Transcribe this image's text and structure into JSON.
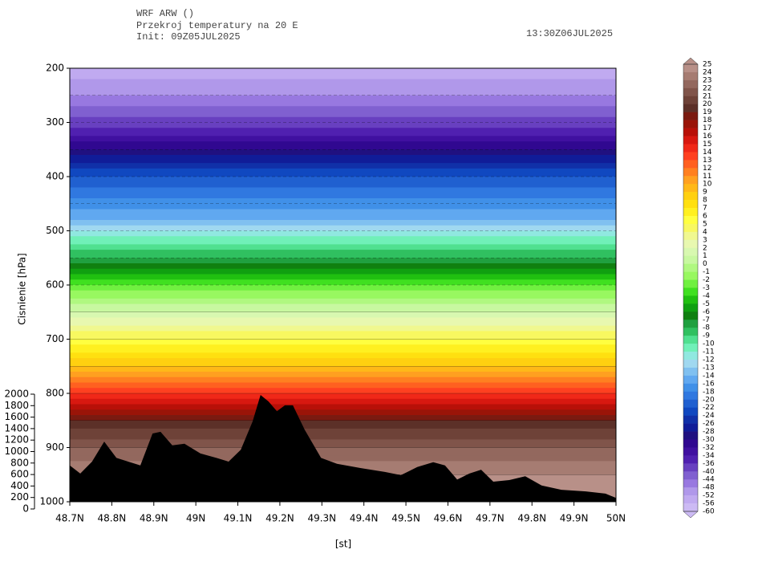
{
  "header": {
    "model": "WRF ARW ()",
    "title": "Przekroj temperatury na 20 E",
    "init": "Init: 09Z05JUL2025",
    "valid": "13:30Z06JUL2025"
  },
  "chart_data": {
    "type": "cross-section",
    "ylabel": "Cisnienie [hPa]",
    "xlabel": "[st]",
    "ylim": [
      200,
      1000
    ],
    "yticks": [
      200,
      300,
      400,
      500,
      600,
      700,
      800,
      900,
      1000
    ],
    "xlim": [
      48.7,
      50
    ],
    "xticks": [
      {
        "value": 48.7,
        "label": "48.7N"
      },
      {
        "value": 48.8,
        "label": "48.8N"
      },
      {
        "value": 48.9,
        "label": "48.9N"
      },
      {
        "value": 49,
        "label": "49N"
      },
      {
        "value": 49.1,
        "label": "49.1N"
      },
      {
        "value": 49.2,
        "label": "49.2N"
      },
      {
        "value": 49.3,
        "label": "49.3N"
      },
      {
        "value": 49.4,
        "label": "49.4N"
      },
      {
        "value": 49.5,
        "label": "49.5N"
      },
      {
        "value": 49.6,
        "label": "49.6N"
      },
      {
        "value": 49.7,
        "label": "49.7N"
      },
      {
        "value": 49.8,
        "label": "49.8N"
      },
      {
        "value": 49.9,
        "label": "49.9N"
      },
      {
        "value": 50,
        "label": "50N"
      }
    ],
    "y2lim": [
      0,
      2000
    ],
    "y2ticks": [
      0,
      200,
      400,
      600,
      800,
      1000,
      1200,
      1400,
      1600,
      1800,
      2000
    ],
    "profile": {
      "pressure": [
        200,
        250,
        300,
        350,
        400,
        450,
        500,
        550,
        600,
        650,
        700,
        750,
        800,
        850,
        900,
        950,
        1000
      ],
      "temperature": [
        -55,
        -48,
        -38,
        -30,
        -22,
        -17,
        -12,
        -8,
        -3,
        1,
        5,
        9,
        14,
        19,
        22,
        24,
        25
      ]
    },
    "terrain": {
      "x": [
        48.7,
        48.725,
        48.753,
        48.782,
        48.811,
        48.839,
        48.868,
        48.897,
        48.916,
        48.944,
        48.973,
        49.011,
        49.049,
        49.078,
        49.107,
        49.135,
        49.154,
        49.173,
        49.193,
        49.212,
        49.231,
        49.259,
        49.298,
        49.336,
        49.393,
        49.45,
        49.488,
        49.527,
        49.565,
        49.593,
        49.622,
        49.651,
        49.679,
        49.708,
        49.746,
        49.784,
        49.823,
        49.87,
        49.928,
        49.975,
        50.0
      ],
      "values": [
        933,
        948,
        926,
        889,
        919,
        926,
        933,
        874,
        871,
        896,
        893,
        911,
        919,
        926,
        904,
        852,
        803,
        815,
        833,
        822,
        822,
        867,
        919,
        930,
        938,
        945,
        951,
        936,
        927,
        933,
        959,
        948,
        941,
        963,
        960,
        953,
        970,
        978,
        981,
        985,
        993
      ],
      "color": "#000000"
    },
    "colorbar": {
      "levels": [
        25,
        24,
        23,
        22,
        21,
        20,
        19,
        18,
        17,
        16,
        15,
        14,
        13,
        12,
        11,
        10,
        9,
        8,
        7,
        6,
        5,
        4,
        3,
        2,
        1,
        0,
        -1,
        -2,
        -3,
        -4,
        -5,
        -6,
        -7,
        -8,
        -9,
        -10,
        -11,
        -12,
        -13,
        -14,
        -16,
        -18,
        -20,
        -22,
        -24,
        -26,
        -28,
        -30,
        -32,
        -34,
        -36,
        -40,
        -44,
        -48,
        -52,
        -56,
        -60
      ],
      "colors": [
        "#b89088",
        "#a67c72",
        "#93685e",
        "#80544a",
        "#6e4238",
        "#5c3028",
        "#7a1a10",
        "#9a1408",
        "#b81008",
        "#d81810",
        "#f02818",
        "#ff4020",
        "#ff6020",
        "#ff8020",
        "#ffa020",
        "#ffb818",
        "#ffd010",
        "#ffe010",
        "#fff020",
        "#ffff40",
        "#f8f860",
        "#f0f890",
        "#e8f8b0",
        "#d8f8b0",
        "#c8f8a0",
        "#b0f880",
        "#98f860",
        "#70f040",
        "#40e020",
        "#20c010",
        "#10a010",
        "#108010",
        "#20a040",
        "#30c060",
        "#50e090",
        "#70f0b8",
        "#90e8e0",
        "#a0d8f0",
        "#80c0f0",
        "#60a8f0",
        "#4090e8",
        "#3078e0",
        "#2060d0",
        "#1048c0",
        "#1030a8",
        "#101c98",
        "#201080",
        "#300890",
        "#4010a0",
        "#5020b0",
        "#6840c0",
        "#8060d0",
        "#9878e0",
        "#b098ea",
        "#c0aaf0",
        "#ccbaf4"
      ]
    }
  }
}
